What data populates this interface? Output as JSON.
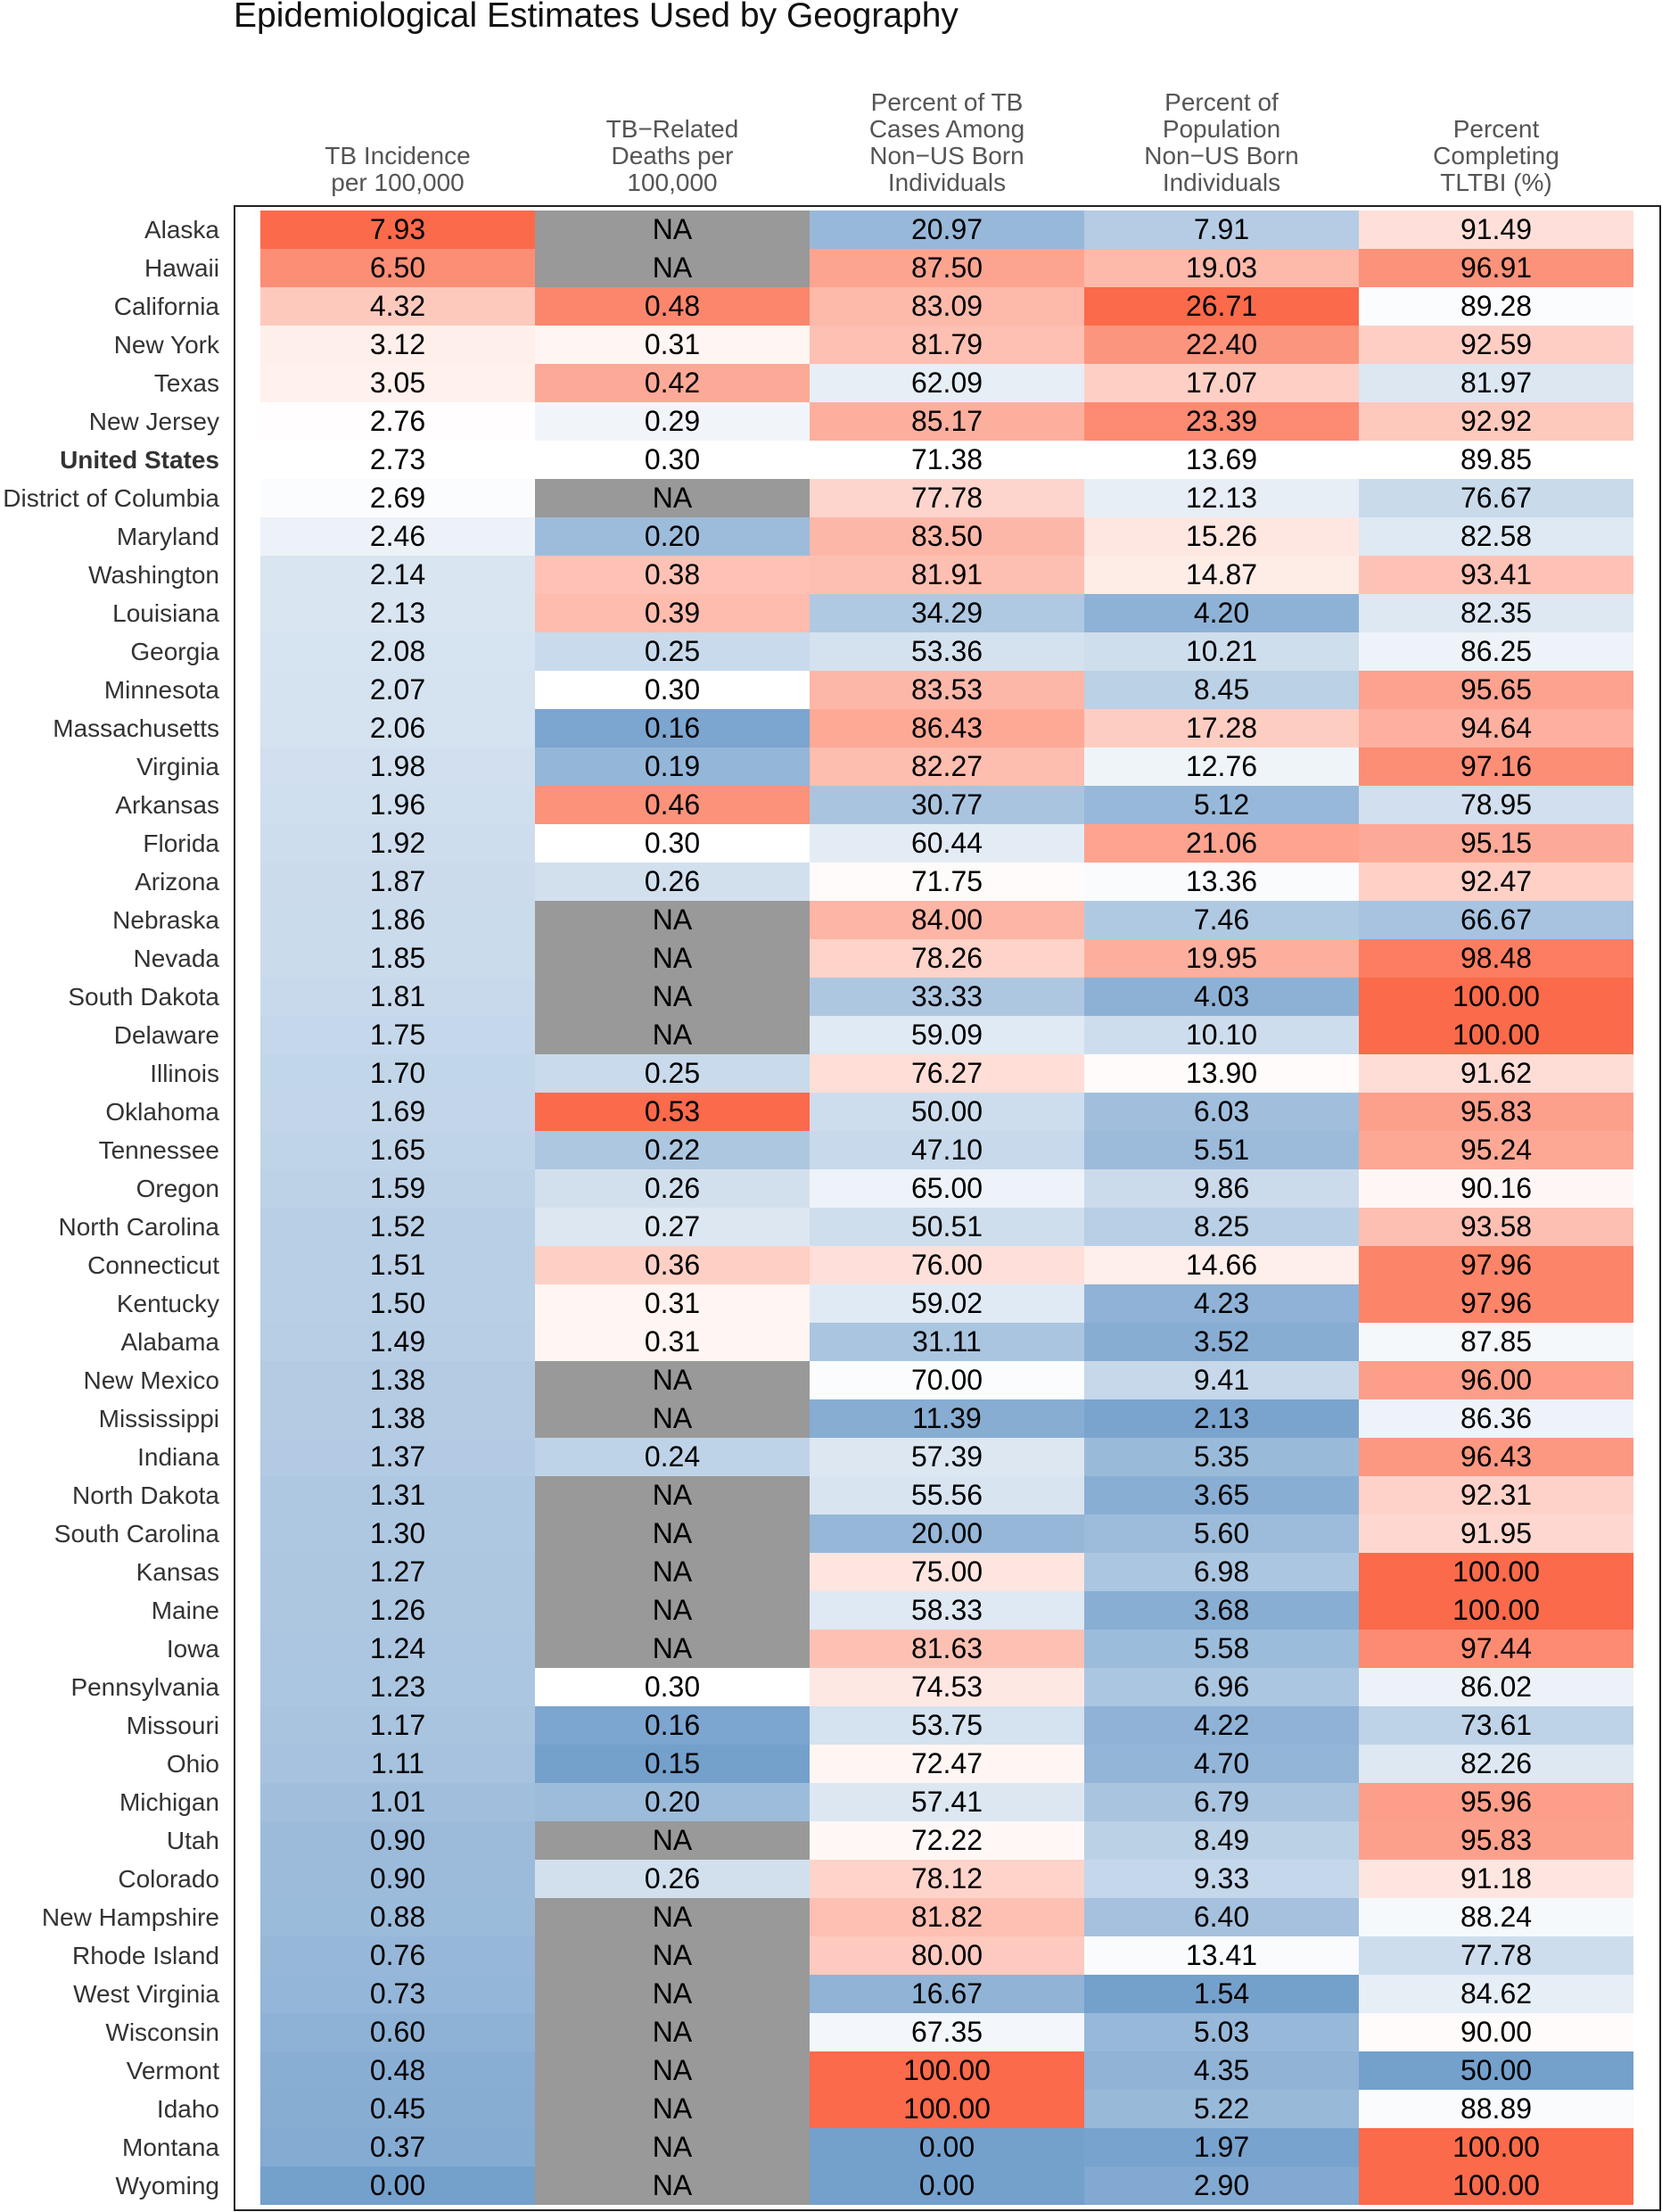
{
  "chart_data": {
    "type": "heatmap",
    "title": "Epidemiological Estimates Used by Geography",
    "na_color": "#999999",
    "columns": [
      "TB Incidence\nper 100,000",
      "TB−Related\nDeaths per\n100,000",
      "Percent of TB\nCases Among\nNon−US Born\nIndividuals",
      "Percent of\nPopulation\nNon−US Born\nIndividuals",
      "Percent\nCompleting\nTLTBI (%)"
    ],
    "reference": [
      2.73,
      0.3,
      71.38,
      13.69,
      89.85
    ],
    "rows": [
      {
        "name": "Alaska",
        "values": [
          "7.93",
          "NA",
          "20.97",
          "7.91",
          "91.49"
        ]
      },
      {
        "name": "Hawaii",
        "values": [
          "6.50",
          "NA",
          "87.50",
          "19.03",
          "96.91"
        ]
      },
      {
        "name": "California",
        "values": [
          "4.32",
          "0.48",
          "83.09",
          "26.71",
          "89.28"
        ]
      },
      {
        "name": "New York",
        "values": [
          "3.12",
          "0.31",
          "81.79",
          "22.40",
          "92.59"
        ]
      },
      {
        "name": "Texas",
        "values": [
          "3.05",
          "0.42",
          "62.09",
          "17.07",
          "81.97"
        ]
      },
      {
        "name": "New Jersey",
        "values": [
          "2.76",
          "0.29",
          "85.17",
          "23.39",
          "92.92"
        ]
      },
      {
        "name": "United States",
        "values": [
          "2.73",
          "0.30",
          "71.38",
          "13.69",
          "89.85"
        ],
        "bold": true
      },
      {
        "name": "District of Columbia",
        "values": [
          "2.69",
          "NA",
          "77.78",
          "12.13",
          "76.67"
        ]
      },
      {
        "name": "Maryland",
        "values": [
          "2.46",
          "0.20",
          "83.50",
          "15.26",
          "82.58"
        ]
      },
      {
        "name": "Washington",
        "values": [
          "2.14",
          "0.38",
          "81.91",
          "14.87",
          "93.41"
        ]
      },
      {
        "name": "Louisiana",
        "values": [
          "2.13",
          "0.39",
          "34.29",
          "4.20",
          "82.35"
        ]
      },
      {
        "name": "Georgia",
        "values": [
          "2.08",
          "0.25",
          "53.36",
          "10.21",
          "86.25"
        ]
      },
      {
        "name": "Minnesota",
        "values": [
          "2.07",
          "0.30",
          "83.53",
          "8.45",
          "95.65"
        ]
      },
      {
        "name": "Massachusetts",
        "values": [
          "2.06",
          "0.16",
          "86.43",
          "17.28",
          "94.64"
        ]
      },
      {
        "name": "Virginia",
        "values": [
          "1.98",
          "0.19",
          "82.27",
          "12.76",
          "97.16"
        ]
      },
      {
        "name": "Arkansas",
        "values": [
          "1.96",
          "0.46",
          "30.77",
          "5.12",
          "78.95"
        ]
      },
      {
        "name": "Florida",
        "values": [
          "1.92",
          "0.30",
          "60.44",
          "21.06",
          "95.15"
        ]
      },
      {
        "name": "Arizona",
        "values": [
          "1.87",
          "0.26",
          "71.75",
          "13.36",
          "92.47"
        ]
      },
      {
        "name": "Nebraska",
        "values": [
          "1.86",
          "NA",
          "84.00",
          "7.46",
          "66.67"
        ]
      },
      {
        "name": "Nevada",
        "values": [
          "1.85",
          "NA",
          "78.26",
          "19.95",
          "98.48"
        ]
      },
      {
        "name": "South Dakota",
        "values": [
          "1.81",
          "NA",
          "33.33",
          "4.03",
          "100.00"
        ]
      },
      {
        "name": "Delaware",
        "values": [
          "1.75",
          "NA",
          "59.09",
          "10.10",
          "100.00"
        ]
      },
      {
        "name": "Illinois",
        "values": [
          "1.70",
          "0.25",
          "76.27",
          "13.90",
          "91.62"
        ]
      },
      {
        "name": "Oklahoma",
        "values": [
          "1.69",
          "0.53",
          "50.00",
          "6.03",
          "95.83"
        ]
      },
      {
        "name": "Tennessee",
        "values": [
          "1.65",
          "0.22",
          "47.10",
          "5.51",
          "95.24"
        ]
      },
      {
        "name": "Oregon",
        "values": [
          "1.59",
          "0.26",
          "65.00",
          "9.86",
          "90.16"
        ]
      },
      {
        "name": "North Carolina",
        "values": [
          "1.52",
          "0.27",
          "50.51",
          "8.25",
          "93.58"
        ]
      },
      {
        "name": "Connecticut",
        "values": [
          "1.51",
          "0.36",
          "76.00",
          "14.66",
          "97.96"
        ]
      },
      {
        "name": "Kentucky",
        "values": [
          "1.50",
          "0.31",
          "59.02",
          "4.23",
          "97.96"
        ]
      },
      {
        "name": "Alabama",
        "values": [
          "1.49",
          "0.31",
          "31.11",
          "3.52",
          "87.85"
        ]
      },
      {
        "name": "New Mexico",
        "values": [
          "1.38",
          "NA",
          "70.00",
          "9.41",
          "96.00"
        ]
      },
      {
        "name": "Mississippi",
        "values": [
          "1.38",
          "NA",
          "11.39",
          "2.13",
          "86.36"
        ]
      },
      {
        "name": "Indiana",
        "values": [
          "1.37",
          "0.24",
          "57.39",
          "5.35",
          "96.43"
        ]
      },
      {
        "name": "North Dakota",
        "values": [
          "1.31",
          "NA",
          "55.56",
          "3.65",
          "92.31"
        ]
      },
      {
        "name": "South Carolina",
        "values": [
          "1.30",
          "NA",
          "20.00",
          "5.60",
          "91.95"
        ]
      },
      {
        "name": "Kansas",
        "values": [
          "1.27",
          "NA",
          "75.00",
          "6.98",
          "100.00"
        ]
      },
      {
        "name": "Maine",
        "values": [
          "1.26",
          "NA",
          "58.33",
          "3.68",
          "100.00"
        ]
      },
      {
        "name": "Iowa",
        "values": [
          "1.24",
          "NA",
          "81.63",
          "5.58",
          "97.44"
        ]
      },
      {
        "name": "Pennsylvania",
        "values": [
          "1.23",
          "0.30",
          "74.53",
          "6.96",
          "86.02"
        ]
      },
      {
        "name": "Missouri",
        "values": [
          "1.17",
          "0.16",
          "53.75",
          "4.22",
          "73.61"
        ]
      },
      {
        "name": "Ohio",
        "values": [
          "1.11",
          "0.15",
          "72.47",
          "4.70",
          "82.26"
        ]
      },
      {
        "name": "Michigan",
        "values": [
          "1.01",
          "0.20",
          "57.41",
          "6.79",
          "95.96"
        ]
      },
      {
        "name": "Utah",
        "values": [
          "0.90",
          "NA",
          "72.22",
          "8.49",
          "95.83"
        ]
      },
      {
        "name": "Colorado",
        "values": [
          "0.90",
          "0.26",
          "78.12",
          "9.33",
          "91.18"
        ]
      },
      {
        "name": "New Hampshire",
        "values": [
          "0.88",
          "NA",
          "81.82",
          "6.40",
          "88.24"
        ]
      },
      {
        "name": "Rhode Island",
        "values": [
          "0.76",
          "NA",
          "80.00",
          "13.41",
          "77.78"
        ]
      },
      {
        "name": "West Virginia",
        "values": [
          "0.73",
          "NA",
          "16.67",
          "1.54",
          "84.62"
        ]
      },
      {
        "name": "Wisconsin",
        "values": [
          "0.60",
          "NA",
          "67.35",
          "5.03",
          "90.00"
        ]
      },
      {
        "name": "Vermont",
        "values": [
          "0.48",
          "NA",
          "100.00",
          "4.35",
          "50.00"
        ]
      },
      {
        "name": "Idaho",
        "values": [
          "0.45",
          "NA",
          "100.00",
          "5.22",
          "88.89"
        ]
      },
      {
        "name": "Montana",
        "values": [
          "0.37",
          "NA",
          "0.00",
          "1.97",
          "100.00"
        ]
      },
      {
        "name": "Wyoming",
        "values": [
          "0.00",
          "NA",
          "0.00",
          "2.90",
          "100.00"
        ]
      }
    ]
  }
}
